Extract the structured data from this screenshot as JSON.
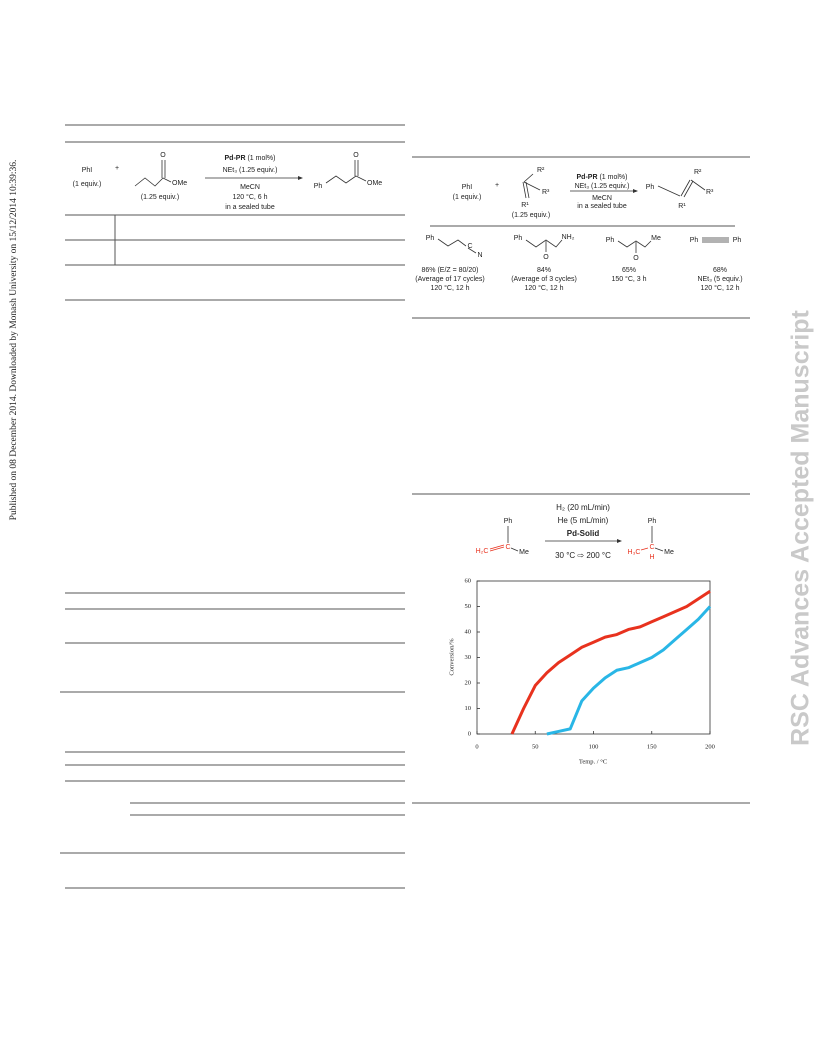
{
  "side_note": "Published on 08 December 2014. Downloaded by Monash University on 15/12/2014 10:39:36.",
  "watermark": "RSC Advances Accepted Manuscript",
  "scheme_left": {
    "reactant1": "PhI",
    "reactant1_equiv": "(1 equiv.)",
    "plus": "+",
    "carbonyl": "O",
    "ester_group": "OMe",
    "reactant2_equiv": "(1.25 equiv.)",
    "catalyst": "Pd-PR",
    "catalyst_loading": "(1 mol%)",
    "base": "NEt₃ (1.25 equiv.)",
    "solvent": "MeCN",
    "conditions": "120 °C, 6 h",
    "vessel": "in a sealed tube",
    "product_aryl": "Ph",
    "product_carbonyl": "O",
    "product_group": "OMe"
  },
  "scheme_right": {
    "reactant1": "PhI",
    "reactant1_equiv": "(1 equiv.)",
    "plus": "+",
    "r2": "R²",
    "r3": "R³",
    "r1": "R¹",
    "reactant2_equiv": "(1.25 equiv.)",
    "catalyst": "Pd-PR",
    "catalyst_loading": "(1 mol%)",
    "base": "NEt₃ (1.25 equiv.)",
    "solvent": "MeCN",
    "vessel": "in a sealed tube",
    "product_aryl": "Ph",
    "product_r2": "R²",
    "product_r3": "R³",
    "product_r1": "R¹",
    "products": [
      {
        "labels": [
          "Ph",
          "C",
          "N"
        ],
        "lines": [
          "86% (E/Z = 80/20)",
          "(Average of 17 cycles)",
          "120 °C, 12 h"
        ]
      },
      {
        "labels": [
          "Ph",
          "NH₂",
          "O"
        ],
        "lines": [
          "84%",
          "(Average of 3 cycles)",
          "120 °C, 12 h"
        ]
      },
      {
        "labels": [
          "Ph",
          "Me",
          "O"
        ],
        "lines": [
          "65%",
          "150 °C, 3 h"
        ]
      },
      {
        "labels": [
          "Ph",
          "Ph"
        ],
        "lines": [
          "68%",
          "NEt₃ (5 equiv.)",
          "120 °C, 12 h"
        ]
      }
    ]
  },
  "hydrogenation": {
    "gas1": "H₂ (20 mL/min)",
    "gas2": "He (5 mL/min)",
    "catalyst": "Pd-Solid",
    "temperature": "30 °C ⇨ 200 °C",
    "reactant": {
      "aryl": "Ph",
      "ch2": "H₂C",
      "carbon": "C",
      "methyl": "Me"
    },
    "product": {
      "aryl": "Ph",
      "ch3": "H₃C",
      "carbon": "C",
      "hydrogen": "H",
      "methyl": "Me"
    }
  },
  "chart_data": {
    "type": "line",
    "x_label": "Temp. / °C",
    "y_label": "Conversion/%",
    "xlim": [
      0,
      200
    ],
    "ylim": [
      0,
      60
    ],
    "xticks": [
      0,
      50,
      100,
      150,
      200
    ],
    "yticks": [
      0,
      10,
      20,
      30,
      40,
      50,
      60
    ],
    "x": [
      30,
      40,
      50,
      60,
      70,
      80,
      90,
      100,
      110,
      120,
      130,
      140,
      150,
      160,
      170,
      180,
      190,
      200
    ],
    "series": [
      {
        "color": "#e8321e",
        "values": [
          0,
          10,
          19,
          24,
          28,
          31,
          34,
          36,
          38,
          39,
          41,
          42,
          44,
          46,
          48,
          50,
          53,
          56
        ]
      },
      {
        "color": "#29b6e6",
        "values": [
          null,
          null,
          null,
          0,
          1,
          2,
          13,
          18,
          22,
          25,
          26,
          28,
          30,
          33,
          37,
          41,
          45,
          50
        ]
      }
    ]
  }
}
